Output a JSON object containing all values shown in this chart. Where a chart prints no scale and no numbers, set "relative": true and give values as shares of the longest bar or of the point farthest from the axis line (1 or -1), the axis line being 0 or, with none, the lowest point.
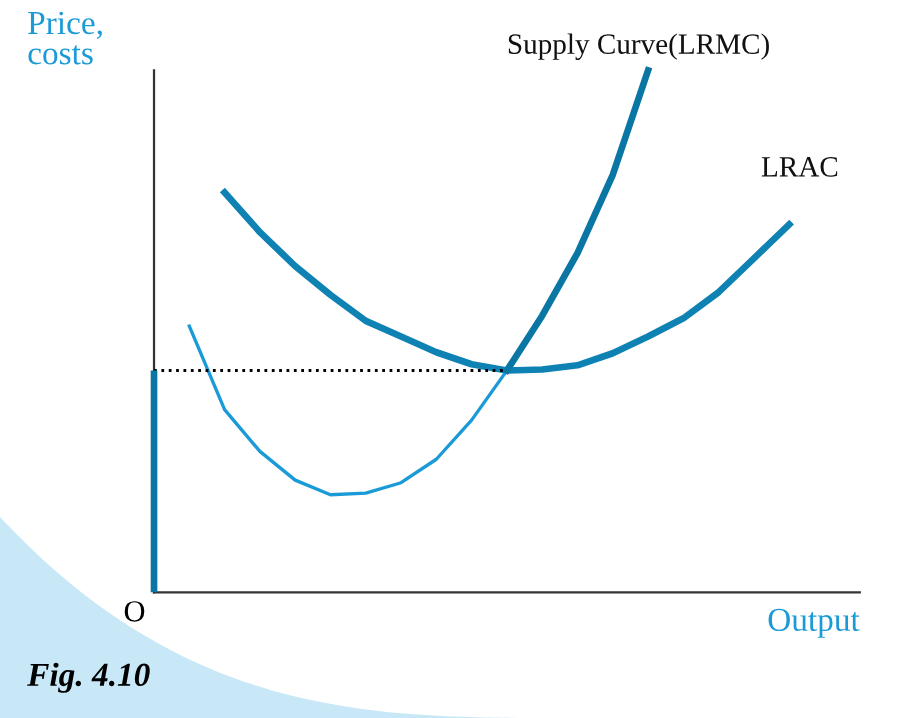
{
  "chart_data": {
    "type": "line",
    "relative": true,
    "xlabel": "Output",
    "ylabel": "Price,\ncosts",
    "annotations": [
      "O",
      "Fig. 4.10"
    ],
    "categories": [
      null,
      null,
      null,
      null,
      null,
      null,
      null,
      null,
      null,
      null,
      null,
      null,
      null,
      null,
      null,
      null,
      null,
      null,
      null,
      null,
      null
    ],
    "series": [
      {
        "name": "LRAC",
        "color": "#0f82b4",
        "values": [
          null,
          null,
          0.766,
          0.69,
          0.625,
          0.57,
          0.52,
          0.49,
          0.46,
          0.437,
          0.425,
          0.427,
          0.435,
          0.458,
          0.49,
          0.525,
          0.575,
          0.64,
          0.705,
          null,
          null
        ]
      },
      {
        "color": "#1a9ad6",
        "values": [
          null,
          0.51,
          0.35,
          0.27,
          0.215,
          0.187,
          0.19,
          0.21,
          0.255,
          0.33,
          0.425,
          null,
          null,
          null,
          null,
          null,
          null,
          null,
          null,
          null,
          null
        ]
      },
      {
        "name": "Supply Curve(LRMC)",
        "color": "#0a76a4",
        "values": [
          null,
          null,
          null,
          null,
          null,
          null,
          null,
          null,
          null,
          null,
          0.425,
          0.53,
          0.65,
          0.8,
          1.0,
          null,
          null,
          null,
          null,
          null,
          null
        ]
      },
      {
        "color": "#000000",
        "line_style": "dotted",
        "values": [
          0.425,
          0.425,
          0.425,
          0.425,
          0.425,
          0.425,
          0.425,
          0.425,
          0.425,
          0.425,
          0.425,
          null,
          null,
          null,
          null,
          null,
          null,
          null,
          null,
          null,
          null
        ]
      }
    ]
  }
}
